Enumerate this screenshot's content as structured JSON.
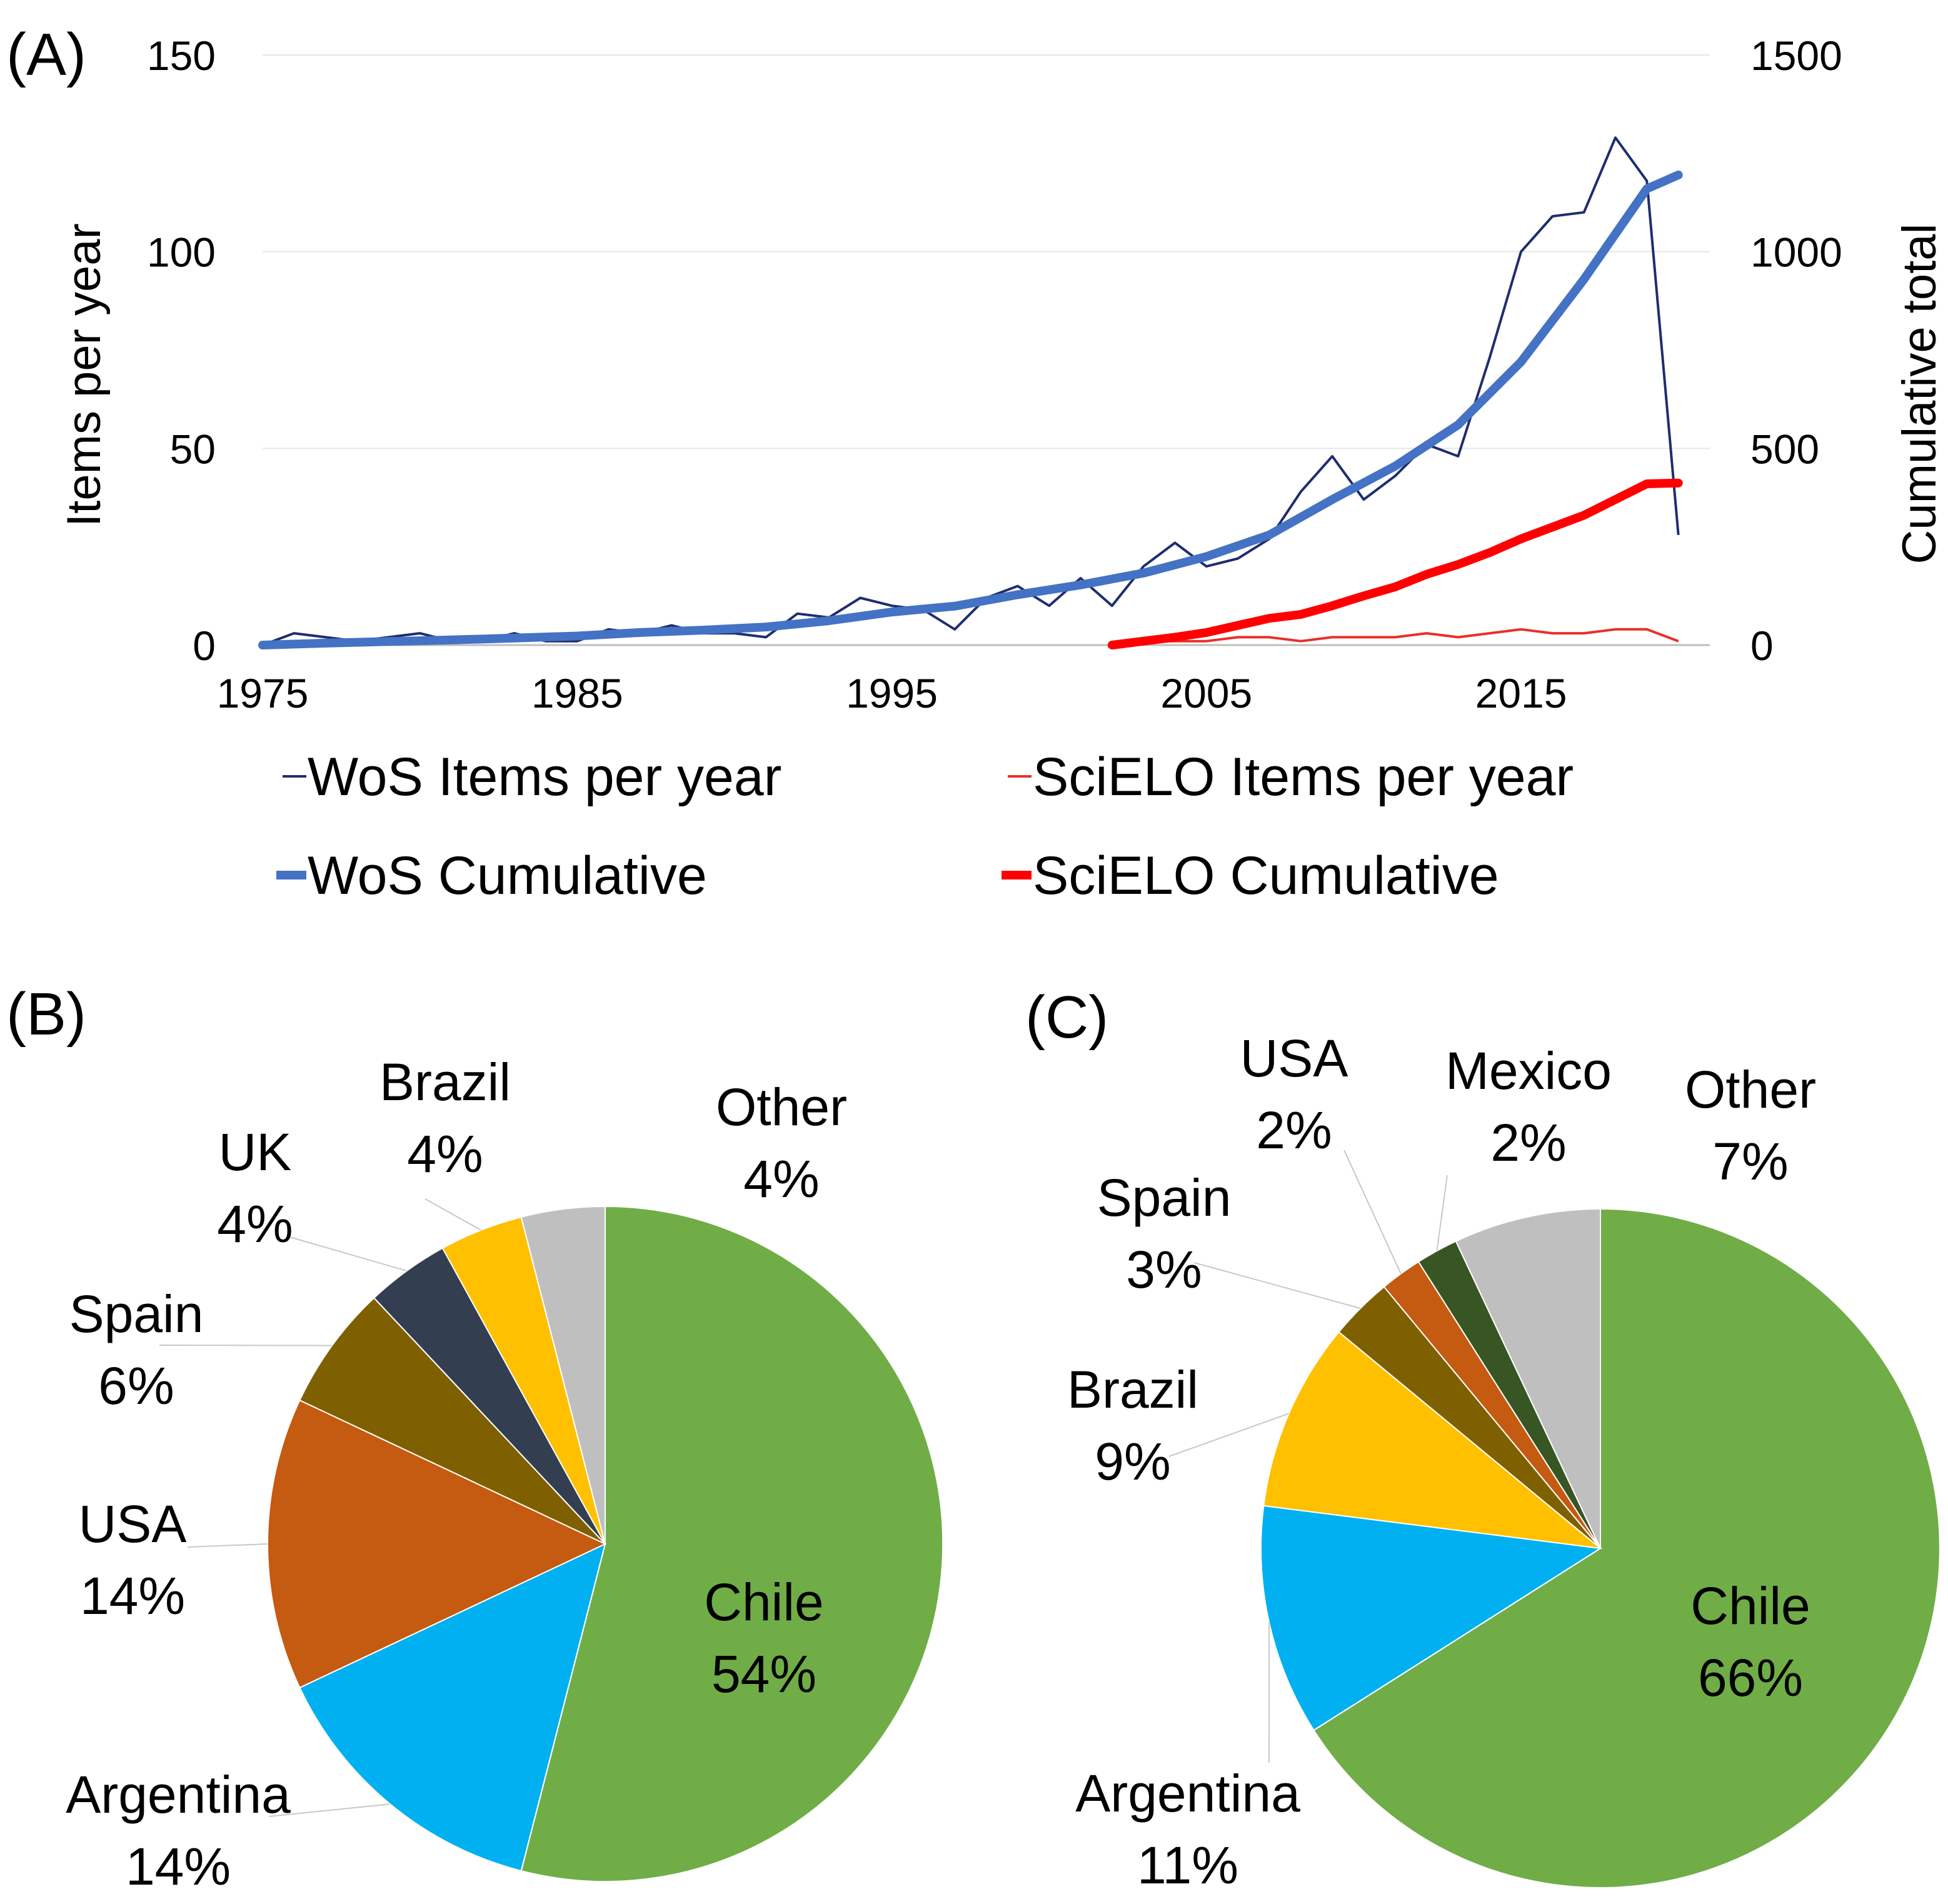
{
  "chart_data": [
    {
      "panel": "(A)",
      "type": "line",
      "ylabel": "Items  per year",
      "y2label": "Cumulative total",
      "xlim": [
        1975,
        2021
      ],
      "ylim": [
        0,
        150
      ],
      "y2lim": [
        0,
        1500
      ],
      "x_ticks": [
        "1975",
        "1985",
        "1995",
        "2005",
        "2015"
      ],
      "y_ticks": [
        "0",
        "50",
        "100",
        "150"
      ],
      "y2_ticks": [
        "0",
        "500",
        "1000",
        "1500"
      ],
      "grid": true,
      "legend_position": "bottom",
      "colors": {
        "wos_items": "#1f2d6e",
        "scielo_items": "#e8302b",
        "wos_cum": "#4472c4",
        "scielo_cum": "#ff0000"
      },
      "series": [
        {
          "key": "wos_items",
          "name": "WoS Items per year",
          "axis": "left",
          "x": [
            1975,
            1976,
            1977,
            1978,
            1979,
            1980,
            1981,
            1982,
            1983,
            1984,
            1985,
            1986,
            1987,
            1988,
            1989,
            1990,
            1991,
            1992,
            1993,
            1994,
            1995,
            1996,
            1997,
            1998,
            1999,
            2000,
            2001,
            2002,
            2003,
            2004,
            2005,
            2006,
            2007,
            2008,
            2009,
            2010,
            2011,
            2012,
            2013,
            2014,
            2015,
            2016,
            2017,
            2018,
            2019,
            2020
          ],
          "values": [
            0,
            3,
            2,
            1,
            2,
            3,
            1,
            1,
            3,
            1,
            1,
            4,
            3,
            5,
            3,
            3,
            2,
            8,
            7,
            12,
            10,
            9,
            4,
            12,
            15,
            10,
            17,
            10,
            20,
            26,
            20,
            22,
            27,
            39,
            48,
            37,
            43,
            51,
            48,
            73,
            100,
            109,
            110,
            129,
            118,
            28
          ]
        },
        {
          "key": "scielo_items",
          "name": "SciELO Items per year",
          "axis": "left",
          "x": [
            2002,
            2003,
            2004,
            2005,
            2006,
            2007,
            2008,
            2009,
            2010,
            2011,
            2012,
            2013,
            2014,
            2015,
            2016,
            2017,
            2018,
            2019,
            2020
          ],
          "values": [
            0,
            1,
            1,
            1,
            2,
            2,
            1,
            2,
            2,
            2,
            3,
            2,
            3,
            4,
            3,
            3,
            4,
            4,
            1
          ]
        },
        {
          "key": "wos_cum",
          "name": "WoS Cumulative",
          "axis": "right",
          "x": [
            1975,
            1977,
            1979,
            1981,
            1983,
            1985,
            1987,
            1989,
            1991,
            1993,
            1995,
            1997,
            1999,
            2001,
            2003,
            2005,
            2007,
            2009,
            2011,
            2013,
            2015,
            2017,
            2019,
            2020
          ],
          "values": [
            0,
            5,
            9,
            13,
            18,
            23,
            32,
            38,
            46,
            62,
            84,
            99,
            128,
            153,
            183,
            225,
            280,
            370,
            455,
            560,
            720,
            930,
            1160,
            1195
          ]
        },
        {
          "key": "scielo_cum",
          "name": "SciELO Cumulative",
          "axis": "right",
          "x": [
            2002,
            2003,
            2004,
            2005,
            2006,
            2007,
            2008,
            2009,
            2010,
            2011,
            2012,
            2013,
            2014,
            2015,
            2016,
            2017,
            2018,
            2019,
            2020
          ],
          "values": [
            0,
            10,
            20,
            32,
            50,
            68,
            78,
            100,
            125,
            148,
            180,
            205,
            235,
            270,
            300,
            330,
            370,
            410,
            412
          ]
        }
      ]
    },
    {
      "panel": "(B)",
      "type": "pie",
      "slices": [
        {
          "name": "Chile",
          "value": 54,
          "label": "54%",
          "color": "#70ad47"
        },
        {
          "name": "Argentina",
          "value": 14,
          "label": "14%",
          "color": "#00b0f0"
        },
        {
          "name": "USA",
          "value": 14,
          "label": "14%",
          "color": "#c55a11"
        },
        {
          "name": "Spain",
          "value": 6,
          "label": "6%",
          "color": "#7f6000"
        },
        {
          "name": "UK",
          "value": 4,
          "label": "4%",
          "color": "#333f50"
        },
        {
          "name": "Brazil",
          "value": 4,
          "label": "4%",
          "color": "#ffc000"
        },
        {
          "name": "Other",
          "value": 4,
          "label": "4%",
          "color": "#bfbfbf"
        }
      ]
    },
    {
      "panel": "(C)",
      "type": "pie",
      "slices": [
        {
          "name": "Chile",
          "value": 66,
          "label": "66%",
          "color": "#70ad47"
        },
        {
          "name": "Argentina",
          "value": 11,
          "label": "11%",
          "color": "#00b0f0"
        },
        {
          "name": "Brazil",
          "value": 9,
          "label": "9%",
          "color": "#ffc000"
        },
        {
          "name": "Spain",
          "value": 3,
          "label": "3%",
          "color": "#7f6000"
        },
        {
          "name": "USA",
          "value": 2,
          "label": "2%",
          "color": "#c55a11"
        },
        {
          "name": "Mexico",
          "value": 2,
          "label": "2%",
          "color": "#375623"
        },
        {
          "name": "Other",
          "value": 7,
          "label": "7%",
          "color": "#bfbfbf"
        }
      ]
    }
  ]
}
